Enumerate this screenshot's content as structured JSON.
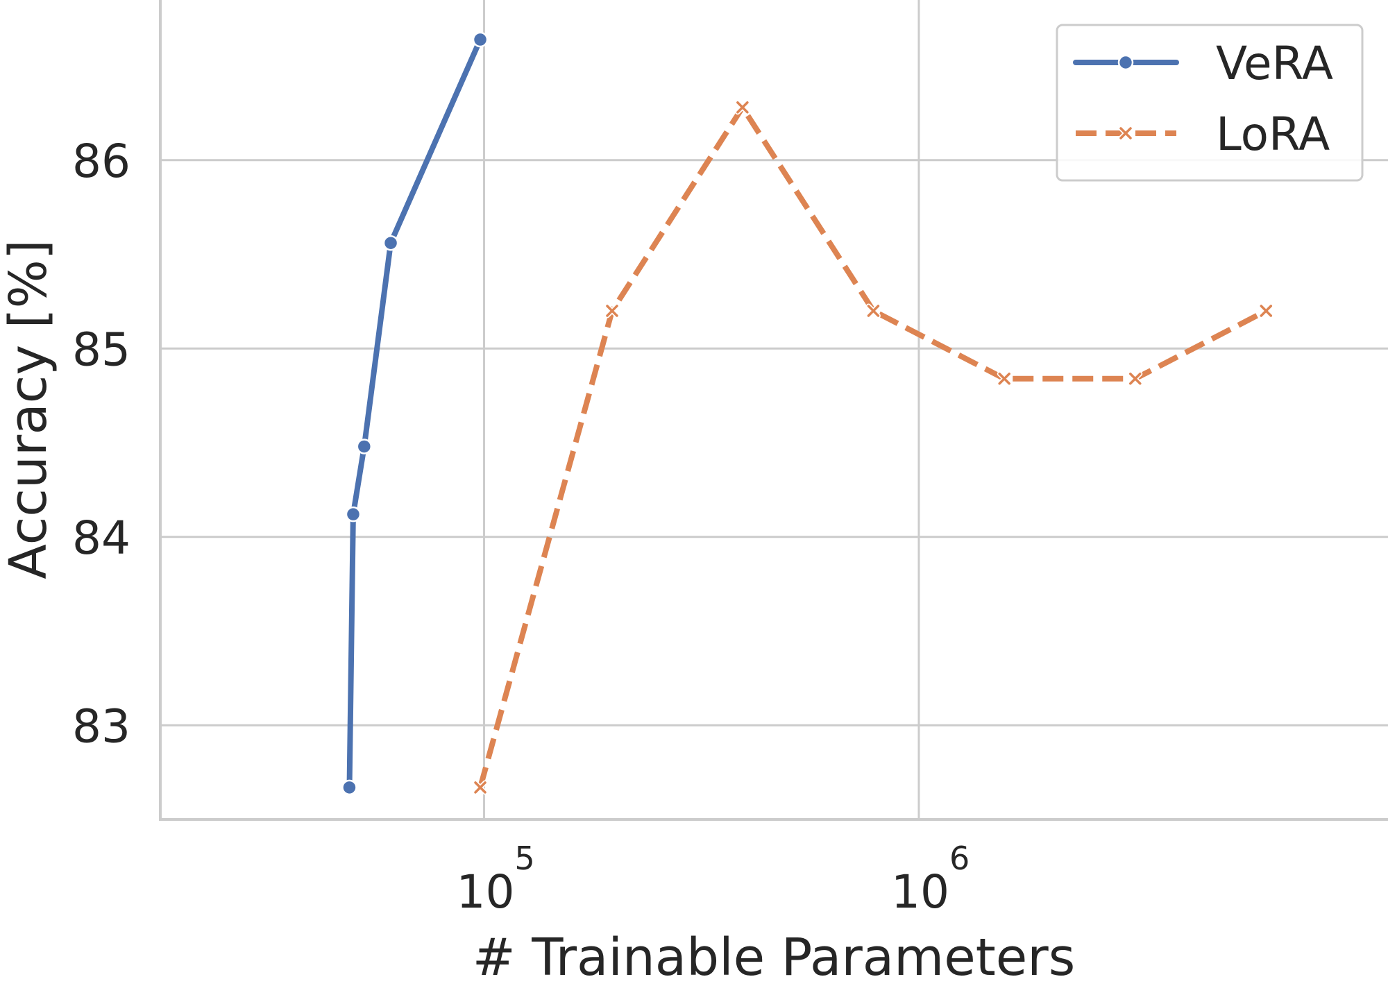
{
  "chart_data": {
    "type": "line",
    "title": "",
    "xlabel": "# Trainable Parameters",
    "ylabel": "Accuracy [%]",
    "xscale": "log",
    "xlim": [
      18000,
      12000000
    ],
    "ylim": [
      82.5,
      86.85
    ],
    "grid": true,
    "legend_position": "top-right",
    "x_ticks": [
      {
        "value": 100000,
        "base": "10",
        "exp": "5"
      },
      {
        "value": 1000000,
        "base": "10",
        "exp": "6"
      }
    ],
    "y_ticks": [
      {
        "value": 83,
        "label": "83"
      },
      {
        "value": 84,
        "label": "84"
      },
      {
        "value": 85,
        "label": "85"
      },
      {
        "value": 86,
        "label": "86"
      }
    ],
    "series": [
      {
        "name": "VeRA",
        "color": "#4c72b0",
        "line_style": "solid",
        "marker": "circle",
        "x": [
          49000,
          50000,
          53000,
          61000,
          98000
        ],
        "y": [
          82.67,
          84.12,
          84.48,
          85.56,
          86.64
        ]
      },
      {
        "name": "LoRA",
        "color": "#dd8452",
        "line_style": "dashed",
        "marker": "x",
        "x": [
          98000,
          197000,
          393000,
          786000,
          1573000,
          3146000,
          6291000
        ],
        "y": [
          82.67,
          85.2,
          86.28,
          85.2,
          84.84,
          84.84,
          85.2
        ]
      }
    ]
  }
}
